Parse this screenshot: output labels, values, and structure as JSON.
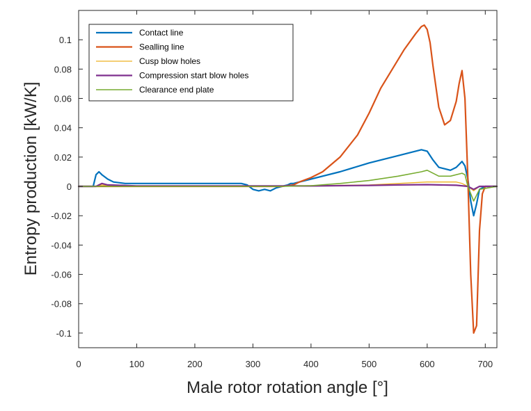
{
  "chart_data": {
    "type": "line",
    "xlabel": "Male rotor rotation angle [°]",
    "ylabel": "Entropy production [kW/K]",
    "xlim": [
      0,
      720
    ],
    "ylim": [
      -0.11,
      0.12
    ],
    "grid": false,
    "legend_position": "top-left",
    "x_ticks": [
      0,
      100,
      200,
      300,
      400,
      500,
      600,
      700
    ],
    "y_ticks": [
      -0.1,
      -0.08,
      -0.06,
      -0.04,
      -0.02,
      0,
      0.02,
      0.04,
      0.06,
      0.08,
      0.1
    ],
    "x_tick_labels": [
      "0",
      "100",
      "200",
      "300",
      "400",
      "500",
      "600",
      "700"
    ],
    "y_tick_labels": [
      "-0.1",
      "-0.08",
      "-0.06",
      "-0.04",
      "-0.02",
      "0",
      "0.02",
      "0.04",
      "0.06",
      "0.08",
      "0.1"
    ],
    "series": [
      {
        "name": "Contact line",
        "color": "#0072BD",
        "x": [
          0,
          25,
          30,
          35,
          40,
          50,
          60,
          80,
          100,
          150,
          200,
          250,
          280,
          290,
          300,
          310,
          320,
          330,
          340,
          350,
          360,
          365,
          370,
          380,
          400,
          450,
          500,
          550,
          590,
          600,
          610,
          620,
          630,
          640,
          650,
          660,
          665,
          670,
          675,
          680,
          685,
          690,
          700,
          720
        ],
        "y": [
          0,
          0,
          0.008,
          0.01,
          0.008,
          0.005,
          0.003,
          0.002,
          0.002,
          0.002,
          0.002,
          0.002,
          0.002,
          0.001,
          -0.002,
          -0.003,
          -0.002,
          -0.003,
          -0.001,
          0,
          0.001,
          0.002,
          0.002,
          0.003,
          0.005,
          0.01,
          0.016,
          0.021,
          0.025,
          0.024,
          0.018,
          0.013,
          0.012,
          0.011,
          0.013,
          0.017,
          0.014,
          0.005,
          -0.01,
          -0.02,
          -0.012,
          -0.002,
          0,
          0
        ]
      },
      {
        "name": "Sealling line",
        "color": "#D95319",
        "x": [
          0,
          350,
          370,
          380,
          400,
          420,
          450,
          480,
          500,
          520,
          540,
          560,
          580,
          590,
          595,
          600,
          605,
          610,
          620,
          630,
          640,
          650,
          655,
          660,
          665,
          670,
          675,
          680,
          685,
          690,
          695,
          700,
          720
        ],
        "y": [
          0,
          0,
          0.001,
          0.003,
          0.006,
          0.01,
          0.02,
          0.035,
          0.05,
          0.067,
          0.08,
          0.093,
          0.104,
          0.109,
          0.11,
          0.107,
          0.098,
          0.082,
          0.054,
          0.042,
          0.045,
          0.058,
          0.07,
          0.079,
          0.06,
          0.005,
          -0.06,
          -0.1,
          -0.095,
          -0.03,
          -0.005,
          0,
          0
        ]
      },
      {
        "name": "Cusp blow holes",
        "color": "#EDB120",
        "x": [
          0,
          30,
          40,
          50,
          100,
          300,
          400,
          500,
          600,
          650,
          660,
          670,
          680,
          690,
          720
        ],
        "y": [
          0,
          0,
          0.001,
          0.0005,
          0.0003,
          0.0003,
          0.0005,
          0.001,
          0.003,
          0.003,
          0.002,
          0,
          -0.003,
          0,
          0
        ]
      },
      {
        "name": "Compression start blow holes",
        "color": "#7E2F8E",
        "x": [
          0,
          30,
          40,
          50,
          100,
          300,
          400,
          500,
          550,
          600,
          650,
          670,
          680,
          690,
          720
        ],
        "y": [
          0,
          0,
          0.002,
          0.001,
          0.0003,
          0.0003,
          0.0003,
          0.0007,
          0.001,
          0.0012,
          0.0008,
          0,
          -0.002,
          0,
          0
        ]
      },
      {
        "name": "Clearance end plate",
        "color": "#77AC30",
        "x": [
          0,
          350,
          400,
          450,
          500,
          550,
          590,
          600,
          610,
          620,
          640,
          660,
          665,
          670,
          680,
          690,
          720
        ],
        "y": [
          0,
          0,
          0.0005,
          0.002,
          0.004,
          0.007,
          0.01,
          0.011,
          0.009,
          0.007,
          0.007,
          0.009,
          0.008,
          0,
          -0.01,
          -0.002,
          0
        ]
      }
    ]
  }
}
